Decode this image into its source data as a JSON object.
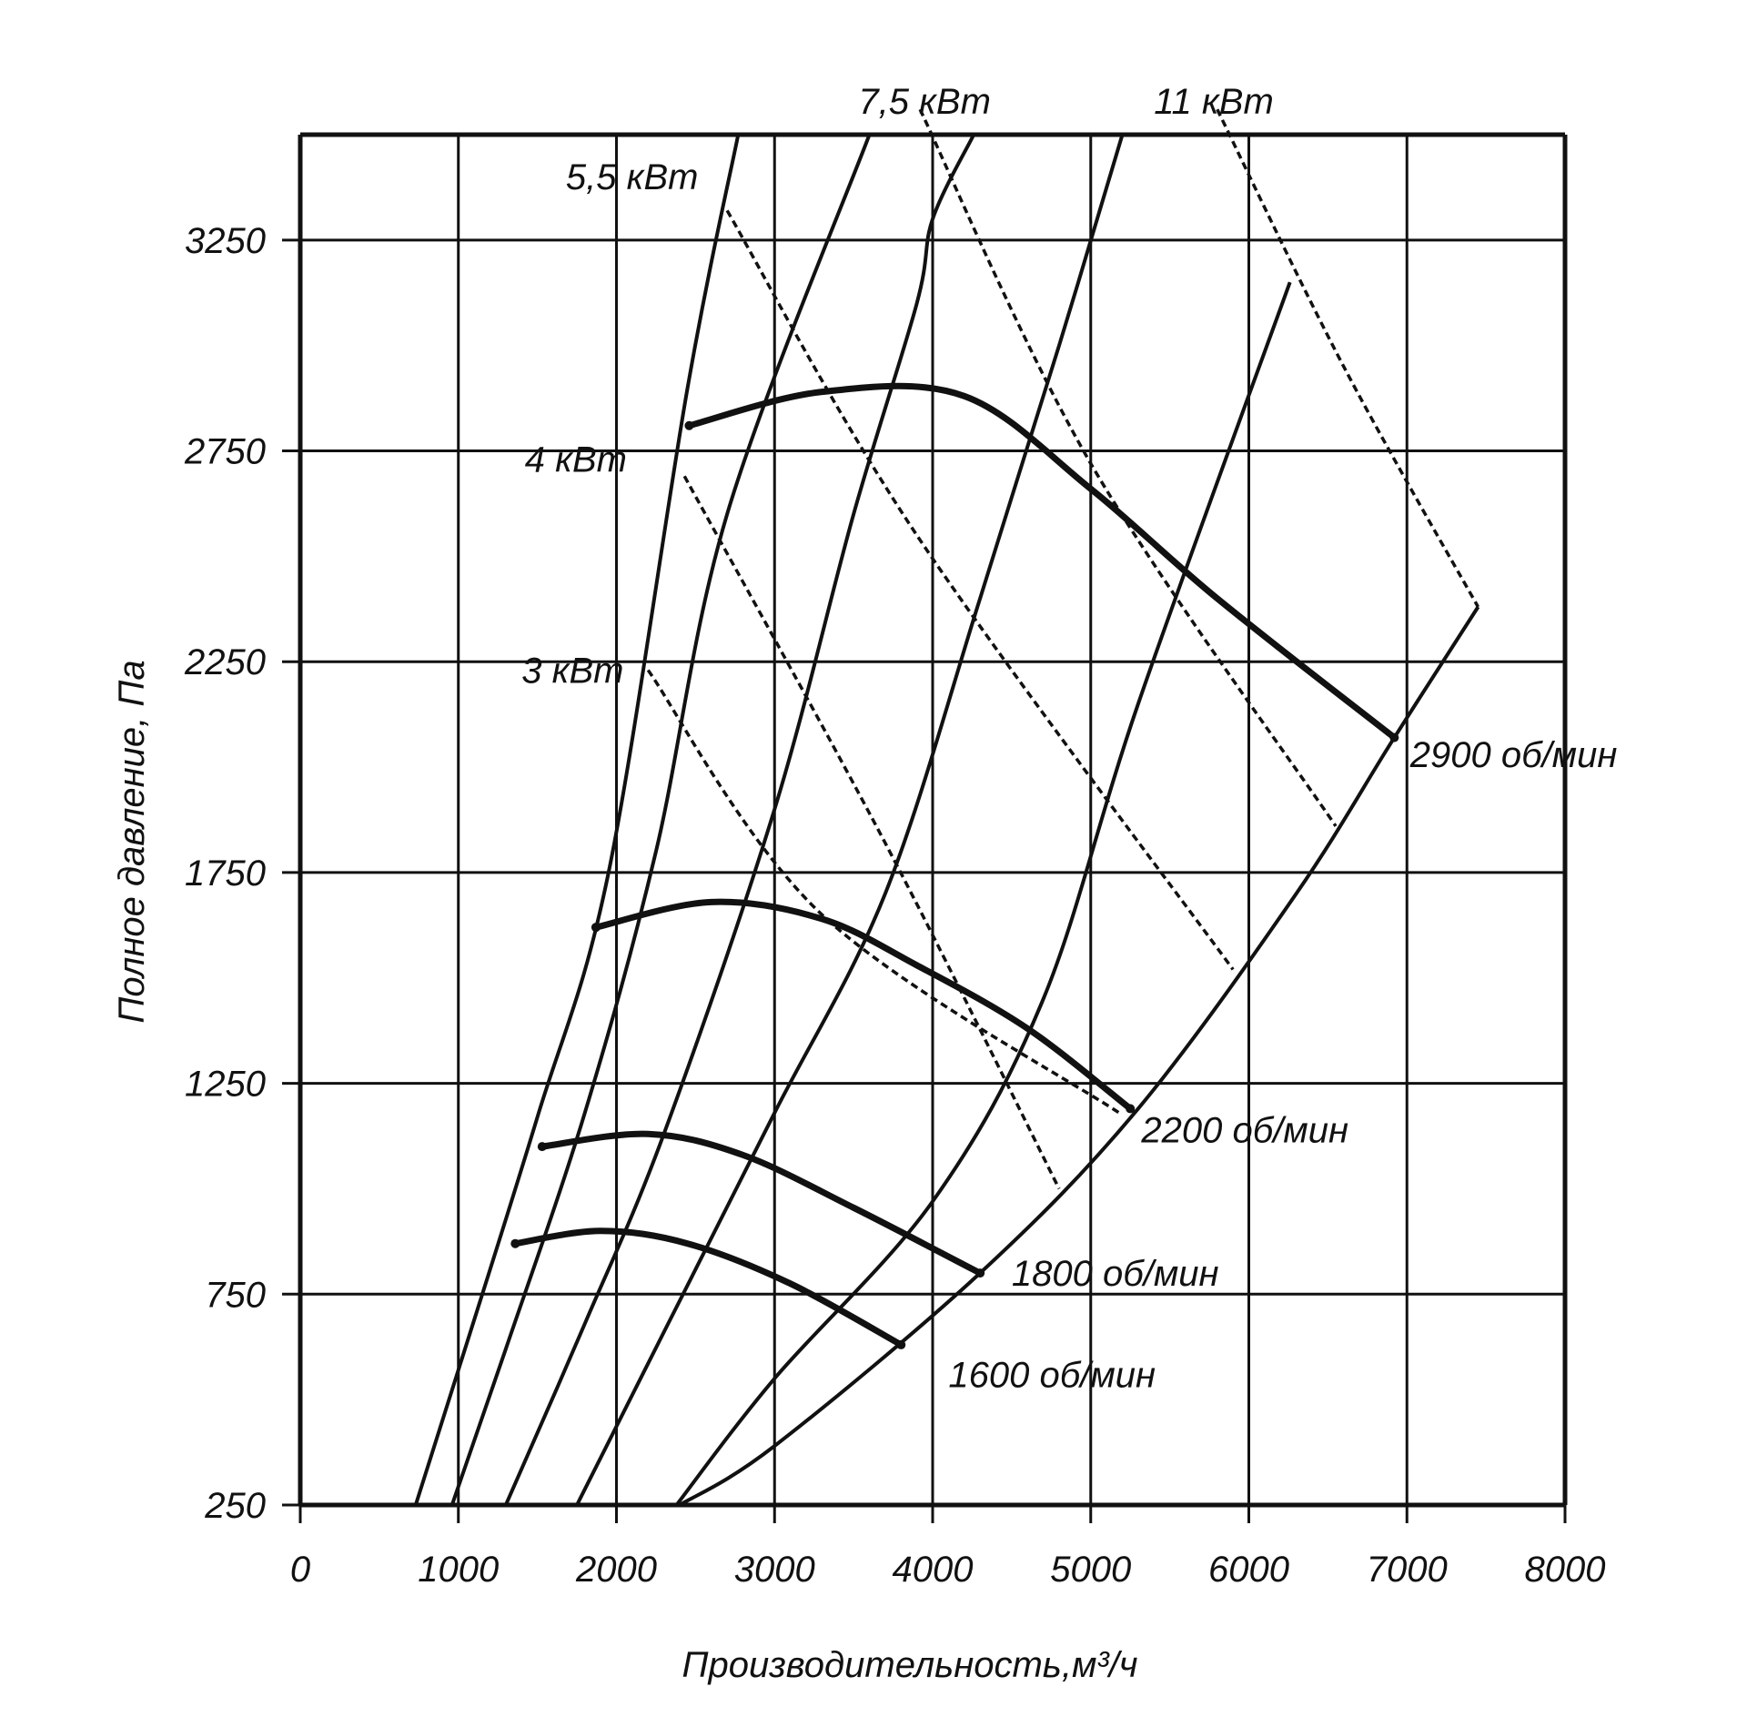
{
  "chart_data": {
    "type": "line",
    "title": "",
    "xlabel": "Производительность,м³/ч",
    "ylabel": "Полное давление, Па",
    "xlim": [
      0,
      8000
    ],
    "ylim": [
      250,
      3500
    ],
    "x_ticks": [
      "0",
      "1000",
      "2000",
      "3000",
      "4000",
      "5000",
      "6000",
      "7000",
      "8000"
    ],
    "y_ticks": [
      "250",
      "750",
      "1250",
      "1750",
      "2250",
      "2750",
      "3250"
    ],
    "grid": true,
    "speed_curves": [
      {
        "name": "1600 об/мин",
        "label_at": [
          4100,
          530
        ],
        "points": [
          [
            1360,
            870
          ],
          [
            1900,
            900
          ],
          [
            2450,
            870
          ],
          [
            3100,
            775
          ],
          [
            3800,
            630
          ]
        ]
      },
      {
        "name": "1800 об/мин",
        "label_at": [
          4500,
          770
        ],
        "points": [
          [
            1530,
            1100
          ],
          [
            2200,
            1130
          ],
          [
            2800,
            1080
          ],
          [
            3500,
            955
          ],
          [
            4300,
            800
          ]
        ]
      },
      {
        "name": "2200 об/мин",
        "label_at": [
          5320,
          1110
        ],
        "points": [
          [
            1870,
            1620
          ],
          [
            2600,
            1680
          ],
          [
            3300,
            1640
          ],
          [
            3900,
            1530
          ],
          [
            4600,
            1380
          ],
          [
            5250,
            1190
          ]
        ]
      },
      {
        "name": "2900 об/мин",
        "label_at": [
          7020,
          2000
        ],
        "points": [
          [
            2460,
            2810
          ],
          [
            3300,
            2890
          ],
          [
            4200,
            2880
          ],
          [
            5000,
            2660
          ],
          [
            5800,
            2400
          ],
          [
            6920,
            2070
          ]
        ]
      }
    ],
    "power_lines": [
      {
        "name": "3 кВт",
        "label_at": [
          1400,
          2200
        ],
        "points": [
          [
            2200,
            2230
          ],
          [
            3300,
            1650
          ],
          [
            5180,
            1180
          ]
        ]
      },
      {
        "name": "4 кВт",
        "label_at": [
          1420,
          2700
        ],
        "points": [
          [
            2430,
            2690
          ],
          [
            3700,
            1820
          ],
          [
            4800,
            1000
          ]
        ]
      },
      {
        "name": "5,5 кВт",
        "label_at": [
          1680,
          3370
        ],
        "points": [
          [
            2700,
            3320
          ],
          [
            3900,
            2550
          ],
          [
            5900,
            1520
          ]
        ]
      },
      {
        "name": "7,5 кВт",
        "label_at": [
          3530,
          3550
        ],
        "points": [
          [
            3920,
            3560
          ],
          [
            5000,
            2720
          ],
          [
            6550,
            1860
          ]
        ]
      },
      {
        "name": "11 кВт",
        "label_at": [
          5400,
          3550
        ],
        "points": [
          [
            5800,
            3560
          ],
          [
            6600,
            2950
          ],
          [
            7450,
            2380
          ]
        ]
      }
    ],
    "system_curves": [
      {
        "points": [
          [
            730,
            250
          ],
          [
            1000,
            570
          ],
          [
            1500,
            1170
          ],
          [
            1950,
            1750
          ],
          [
            2450,
            2900
          ],
          [
            2770,
            3500
          ]
        ]
      },
      {
        "points": [
          [
            960,
            250
          ],
          [
            1300,
            620
          ],
          [
            1800,
            1180
          ],
          [
            2250,
            1800
          ],
          [
            2700,
            2600
          ],
          [
            3600,
            3500
          ]
        ]
      },
      {
        "points": [
          [
            1300,
            250
          ],
          [
            1800,
            680
          ],
          [
            2300,
            1130
          ],
          [
            3000,
            1900
          ],
          [
            3500,
            2600
          ],
          [
            3900,
            3100
          ],
          [
            4000,
            3300
          ],
          [
            4260,
            3500
          ]
        ]
      },
      {
        "points": [
          [
            1750,
            250
          ],
          [
            2300,
            660
          ],
          [
            3000,
            1180
          ],
          [
            3700,
            1700
          ],
          [
            4300,
            2400
          ],
          [
            4800,
            3000
          ],
          [
            5200,
            3500
          ]
        ]
      },
      {
        "points": [
          [
            2380,
            250
          ],
          [
            3000,
            550
          ],
          [
            4000,
            970
          ],
          [
            4700,
            1450
          ],
          [
            5300,
            2150
          ],
          [
            6260,
            3150
          ]
        ]
      },
      {
        "points": [
          [
            2400,
            250
          ],
          [
            3000,
            390
          ],
          [
            4300,
            800
          ],
          [
            5300,
            1190
          ],
          [
            6300,
            1700
          ],
          [
            6920,
            2070
          ],
          [
            7450,
            2380
          ]
        ]
      }
    ]
  }
}
